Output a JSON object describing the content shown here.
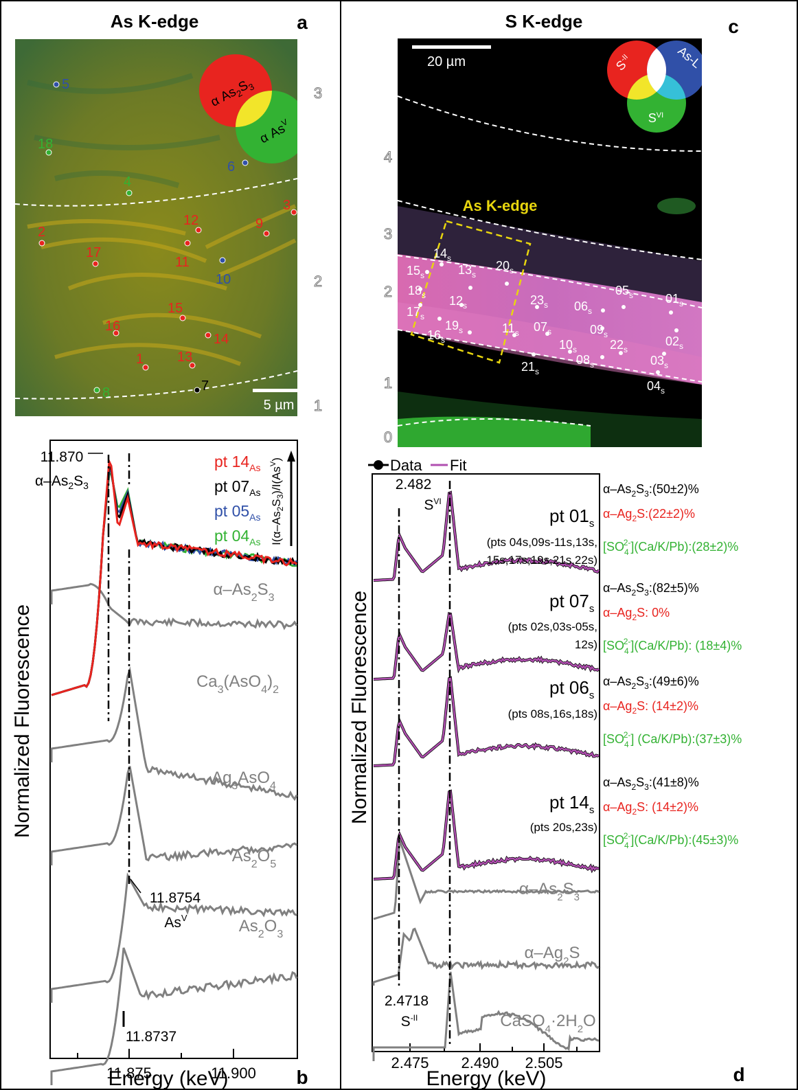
{
  "panel_a": {
    "title": "As K-edge",
    "letter": "a",
    "scale_bar": "5 µm",
    "legend": {
      "red": "α As2S3",
      "green": "α As",
      "green_sup": "V"
    },
    "colors": {
      "red": "#e8241f",
      "green": "#33b233",
      "yellow": "#f2e52a",
      "blue": "#3050a8",
      "white": "#ffffff",
      "black": "#000000"
    },
    "zones": [
      "3",
      "2",
      "1"
    ],
    "points": [
      {
        "id": "5",
        "color": "blue"
      },
      {
        "id": "18",
        "color": "green"
      },
      {
        "id": "6",
        "color": "blue"
      },
      {
        "id": "4",
        "color": "green"
      },
      {
        "id": "3",
        "color": "red"
      },
      {
        "id": "12",
        "color": "red"
      },
      {
        "id": "9",
        "color": "red"
      },
      {
        "id": "2",
        "color": "red"
      },
      {
        "id": "17",
        "color": "red"
      },
      {
        "id": "11",
        "color": "red"
      },
      {
        "id": "10",
        "color": "blue"
      },
      {
        "id": "15",
        "color": "red"
      },
      {
        "id": "16",
        "color": "red"
      },
      {
        "id": "14",
        "color": "red"
      },
      {
        "id": "13",
        "color": "red"
      },
      {
        "id": "1",
        "color": "red"
      },
      {
        "id": "8",
        "color": "green"
      },
      {
        "id": "7",
        "color": "black"
      }
    ]
  },
  "panel_b": {
    "letter": "b",
    "xlabel": "Energy (keV)",
    "ylabel": "Normalized Fluorescence",
    "xticks": [
      "11.875",
      "11.900"
    ],
    "annot_peak1": "11.870",
    "annot_peak1_species": "α–As",
    "annot_peak2": "11.8754",
    "annot_peak2_species": "As",
    "annot_peak3": "11.8737",
    "arrow_label": "I(α–As2S3)/I(As",
    "arrow_label_sup": "V",
    "data_legend": [
      {
        "label": "pt 14",
        "sub": "As",
        "color": "#e8241f"
      },
      {
        "label": "pt 07",
        "sub": "As",
        "color": "#000000"
      },
      {
        "label": "pt 05",
        "sub": "As",
        "color": "#3050a8"
      },
      {
        "label": "pt 04",
        "sub": "As",
        "color": "#33b233"
      }
    ],
    "references": [
      "α–As2S3",
      "Ca3(AsO4)2",
      "Ag3AsO4",
      "As2O5",
      "As2O3"
    ],
    "ref_color": "#808080"
  },
  "panel_c": {
    "title": "S K-edge",
    "letter": "c",
    "scale_bar": "20 µm",
    "box_label": "As K-edge",
    "legend": {
      "red": "S",
      "red_sup": "-II",
      "blue": "As-L",
      "green": "S",
      "green_sup": "VI"
    },
    "zones": [
      "4",
      "3",
      "2",
      "1",
      "0"
    ],
    "points": [
      "14",
      "15",
      "13",
      "20",
      "18",
      "12",
      "17",
      "23",
      "06",
      "05",
      "01",
      "19",
      "16",
      "11",
      "07",
      "09",
      "10",
      "22",
      "02",
      "08",
      "03",
      "21",
      "04"
    ],
    "point_sub": "s"
  },
  "panel_d": {
    "letter": "d",
    "xlabel": "Energy (keV)",
    "ylabel": "Normalized Fluorescence",
    "xticks": [
      "2.475",
      "2.490",
      "2.505"
    ],
    "legend_data": "Data",
    "legend_fit": "Fit",
    "fit_color": "#b04fb0",
    "annot_svi": "2.482",
    "annot_svi_species": "S",
    "annot_svi_sup": "VI",
    "annot_s2": "2.4718",
    "annot_s2_species": "S",
    "annot_s2_sup": "-II",
    "spectra": [
      {
        "label": "pt 01",
        "sub": "s",
        "group": "(pts 04s,09s-11s,13s, 15s,17s,19s,21s,22s)",
        "as2s3": "α–As2S3:(50±2)%",
        "ag2s": "α–Ag2S:(22±2)%",
        "so4": "[SO42-](Ca/K/Pb):(28±2)%"
      },
      {
        "label": "pt 07",
        "sub": "s",
        "group": "(pts 02s,03s-05s, 12s)",
        "as2s3": "α–As2S3:(82±5)%",
        "ag2s": "α–Ag2S: 0%",
        "so4": "[SO42-](Ca/K/Pb): (18±4)%"
      },
      {
        "label": "pt 06",
        "sub": "s",
        "group": "(pts 08s,16s,18s)",
        "as2s3": "α–As2S3:(49±6)%",
        "ag2s": "α–Ag2S: (14±2)%",
        "so4": "[SO42-] (Ca/K/Pb):(37±3)%"
      },
      {
        "label": "pt 14",
        "sub": "s",
        "group": "(pts 20s,23s)",
        "as2s3": "α–As2S3:(41±8)%",
        "ag2s": "α–Ag2S: (14±2)%",
        "so4": "[SO42-](Ca/K/Pb):(45±3)%"
      }
    ],
    "references": [
      "α–As2S3",
      "α–Ag2S",
      "CaSO4·2H2O"
    ],
    "color_black": "#000000",
    "color_red": "#e8241f",
    "color_green": "#33b233"
  }
}
